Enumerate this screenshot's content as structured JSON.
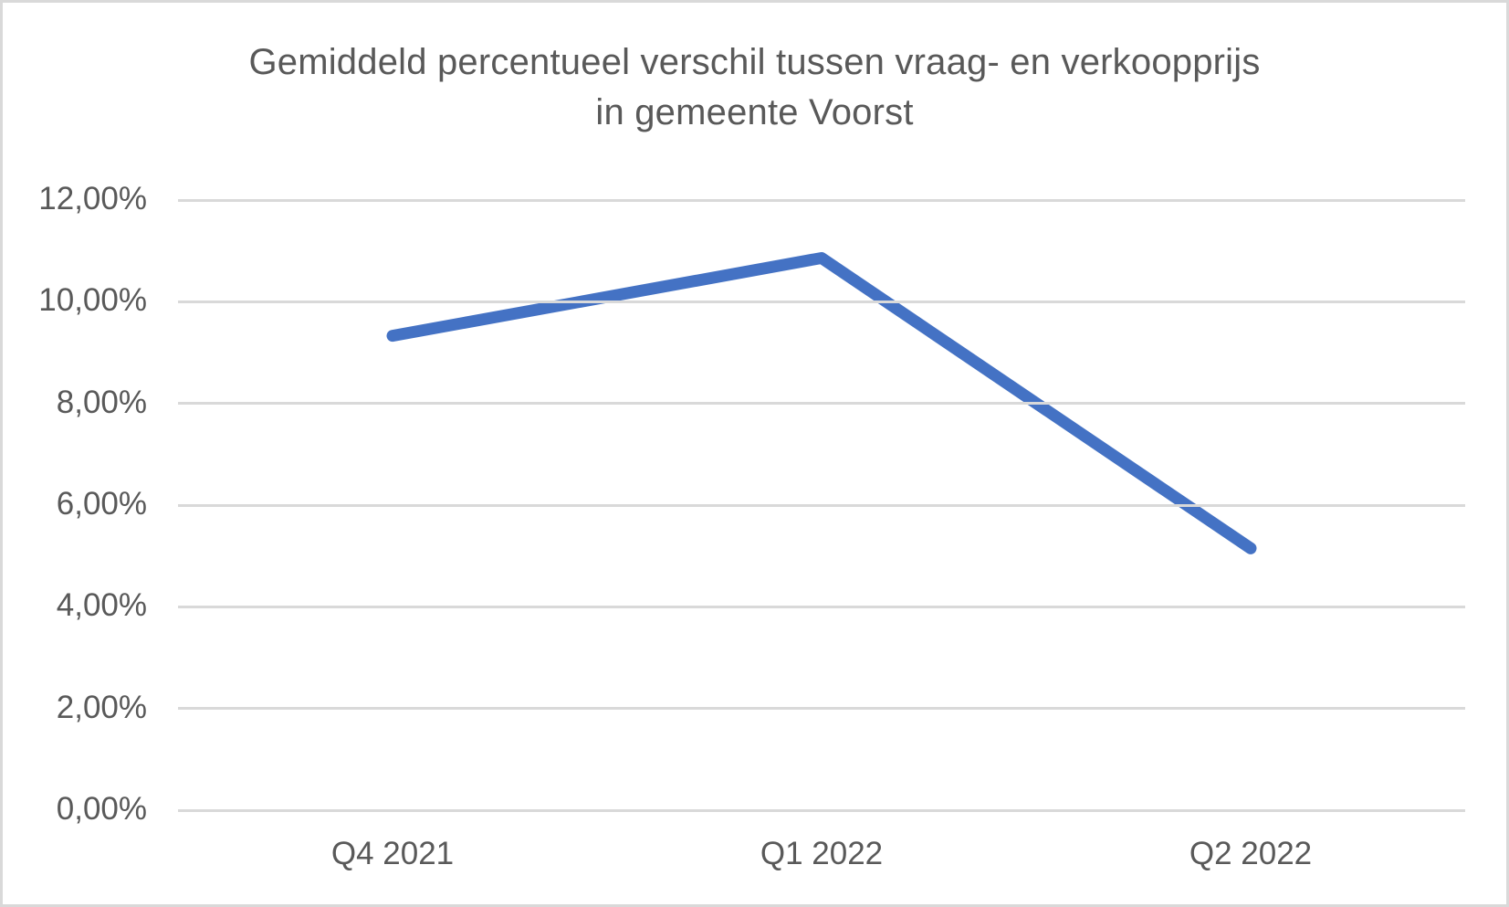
{
  "frame": {
    "background": "#ffffff",
    "border_color": "#d9d9d9"
  },
  "chart_data": {
    "type": "line",
    "title": "Gemiddeld percentueel verschil tussen vraag- en verkoopprijs in gemeente Voorst",
    "title_lines": [
      "Gemiddeld percentueel verschil tussen vraag- en verkoopprijs",
      "in gemeente Voorst"
    ],
    "categories": [
      "Q4 2021",
      "Q1 2022",
      "Q2 2022"
    ],
    "series": [
      {
        "name": "Gemiddeld percentueel verschil",
        "values": [
          9.33,
          10.86,
          5.15
        ]
      }
    ],
    "xlabel": "",
    "ylabel": "",
    "ylim": [
      0,
      12
    ],
    "ytick_step": 2,
    "yticks": [
      {
        "value": 0,
        "label": "0,00%"
      },
      {
        "value": 2,
        "label": "2,00%"
      },
      {
        "value": 4,
        "label": "4,00%"
      },
      {
        "value": 6,
        "label": "6,00%"
      },
      {
        "value": 8,
        "label": "8,00%"
      },
      {
        "value": 10,
        "label": "10,00%"
      },
      {
        "value": 12,
        "label": "12,00%"
      }
    ],
    "grid": true,
    "legend_position": "none",
    "line_color": "#4472c4",
    "gridline_color": "#d9d9d9",
    "text_color": "#595959"
  }
}
